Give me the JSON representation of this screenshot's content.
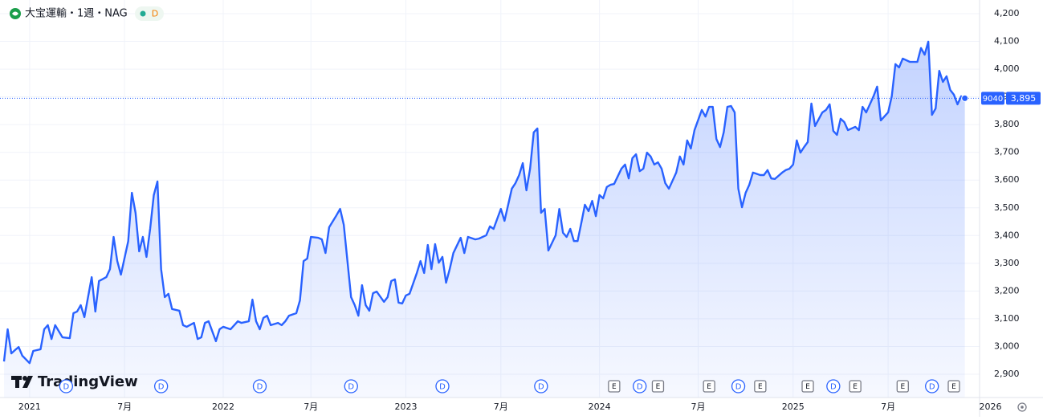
{
  "chart_data": {
    "type": "area",
    "title": "大宝運輸・1週・NAG",
    "badge": "D",
    "symbol_code": "9040",
    "last_label": "3,895",
    "watermark": "TradingView",
    "color": "#2962ff",
    "grid": true,
    "x": [
      0,
      1,
      2,
      3,
      4,
      5,
      7,
      8,
      10,
      11,
      12,
      13,
      14,
      16,
      18,
      19,
      20,
      21,
      22,
      24,
      25,
      26,
      28,
      29,
      30,
      31,
      32,
      34,
      35,
      36,
      37,
      38,
      39,
      40,
      41,
      42,
      43,
      44,
      45,
      46,
      48,
      49,
      50,
      52,
      53,
      54,
      55,
      56,
      58,
      59,
      60,
      62,
      64,
      65,
      67,
      68,
      69,
      70,
      71,
      72,
      73,
      75,
      76,
      77,
      78,
      80,
      81,
      82,
      83,
      84,
      86,
      87,
      88,
      89,
      91,
      92,
      93,
      95,
      96,
      97,
      98,
      99,
      100,
      101,
      102,
      104,
      105,
      106,
      107,
      108,
      109,
      110,
      111,
      113,
      114,
      115,
      116,
      117,
      118,
      119,
      120,
      121,
      122,
      123,
      125,
      126,
      127,
      129,
      130,
      132,
      133,
      134,
      136,
      137,
      139,
      140,
      141,
      142,
      143,
      144,
      145,
      146,
      147,
      148,
      149,
      151,
      152,
      153,
      154,
      155,
      156,
      157,
      158,
      159,
      160,
      161,
      162,
      163,
      164,
      165,
      166,
      167,
      169,
      170,
      171,
      172,
      173,
      174,
      175,
      176,
      177,
      178,
      179,
      180,
      181,
      182,
      184,
      185,
      186,
      187,
      188,
      189,
      191,
      192,
      193,
      194,
      195,
      196,
      197,
      198,
      199,
      200,
      201,
      202,
      203,
      204,
      205,
      207,
      208,
      209,
      210,
      211,
      213,
      214,
      215,
      216,
      217,
      218,
      219,
      220,
      221,
      222,
      224,
      225,
      226,
      227,
      228,
      229,
      230,
      231,
      233,
      234,
      235,
      236,
      237,
      238,
      239,
      240,
      242,
      243,
      244,
      245,
      246,
      248,
      249,
      250,
      251,
      252,
      253,
      254,
      255,
      256,
      257,
      258,
      259,
      260,
      261,
      262,
      263
    ],
    "values": [
      2946,
      3062,
      2975,
      2987,
      2998,
      2967,
      2940,
      2984,
      2990,
      3062,
      3077,
      3027,
      3077,
      3033,
      3030,
      3120,
      3126,
      3149,
      3106,
      3250,
      3126,
      3236,
      3250,
      3279,
      3395,
      3308,
      3259,
      3380,
      3554,
      3482,
      3343,
      3395,
      3323,
      3424,
      3546,
      3595,
      3279,
      3178,
      3190,
      3135,
      3129,
      3077,
      3071,
      3085,
      3027,
      3033,
      3085,
      3091,
      3019,
      3062,
      3071,
      3062,
      3091,
      3085,
      3091,
      3169,
      3091,
      3062,
      3103,
      3111,
      3077,
      3085,
      3077,
      3091,
      3111,
      3120,
      3166,
      3308,
      3317,
      3395,
      3392,
      3386,
      3337,
      3430,
      3473,
      3496,
      3439,
      3178,
      3149,
      3111,
      3221,
      3149,
      3129,
      3192,
      3198,
      3161,
      3178,
      3236,
      3242,
      3158,
      3155,
      3184,
      3190,
      3265,
      3308,
      3265,
      3366,
      3279,
      3369,
      3302,
      3323,
      3230,
      3279,
      3337,
      3392,
      3337,
      3395,
      3386,
      3389,
      3401,
      3433,
      3424,
      3496,
      3453,
      3569,
      3589,
      3618,
      3661,
      3563,
      3641,
      3772,
      3786,
      3482,
      3496,
      3346,
      3401,
      3496,
      3410,
      3395,
      3424,
      3380,
      3380,
      3444,
      3511,
      3488,
      3525,
      3470,
      3546,
      3534,
      3575,
      3583,
      3586,
      3641,
      3656,
      3606,
      3679,
      3693,
      3632,
      3641,
      3699,
      3685,
      3656,
      3664,
      3641,
      3589,
      3569,
      3627,
      3685,
      3656,
      3743,
      3714,
      3780,
      3853,
      3829,
      3864,
      3864,
      3748,
      3719,
      3772,
      3864,
      3867,
      3844,
      3569,
      3502,
      3554,
      3583,
      3627,
      3618,
      3618,
      3636,
      3606,
      3604,
      3627,
      3636,
      3641,
      3656,
      3743,
      3699,
      3719,
      3737,
      3876,
      3795,
      3844,
      3853,
      3873,
      3777,
      3763,
      3821,
      3809,
      3780,
      3792,
      3780,
      3864,
      3844,
      3873,
      3902,
      3937,
      3815,
      3844,
      3902,
      4018,
      4006,
      4038,
      4026,
      4026,
      4026,
      4076,
      4052,
      4099,
      3835,
      3858,
      3994,
      3954,
      3974,
      3925,
      3908,
      3873,
      3902,
      3895
    ],
    "xlim": [
      0,
      270
    ],
    "xticks": [
      {
        "value": 7,
        "label": "2021"
      },
      {
        "value": 33,
        "label": "7月"
      },
      {
        "value": 60,
        "label": "2022"
      },
      {
        "value": 84,
        "label": "7月"
      },
      {
        "value": 110,
        "label": "2023"
      },
      {
        "value": 136,
        "label": "7月"
      },
      {
        "value": 163,
        "label": "2024"
      },
      {
        "value": 190,
        "label": "7月"
      },
      {
        "value": 216,
        "label": "2025"
      },
      {
        "value": 242,
        "label": "7月"
      },
      {
        "value": 270,
        "label": "2026"
      }
    ],
    "ylim": [
      2900,
      4200
    ],
    "yticks": [
      {
        "value": 2900,
        "label": "2,900"
      },
      {
        "value": 3000,
        "label": "3,000"
      },
      {
        "value": 3100,
        "label": "3,100"
      },
      {
        "value": 3200,
        "label": "3,200"
      },
      {
        "value": 3300,
        "label": "3,300"
      },
      {
        "value": 3400,
        "label": "3,400"
      },
      {
        "value": 3500,
        "label": "3,500"
      },
      {
        "value": 3600,
        "label": "3,600"
      },
      {
        "value": 3700,
        "label": "3,700"
      },
      {
        "value": 3800,
        "label": "3,800"
      },
      {
        "value": 3900,
        "label": "3,900"
      },
      {
        "value": 4000,
        "label": "4,000"
      },
      {
        "value": 4100,
        "label": "4,100"
      },
      {
        "value": 4200,
        "label": "4,200"
      }
    ],
    "events": [
      {
        "x": 17,
        "label": "D"
      },
      {
        "x": 43,
        "label": "D"
      },
      {
        "x": 70,
        "label": "D"
      },
      {
        "x": 95,
        "label": "D"
      },
      {
        "x": 120,
        "label": "D"
      },
      {
        "x": 147,
        "label": "D"
      },
      {
        "x": 167,
        "label": "E"
      },
      {
        "x": 174,
        "label": "D"
      },
      {
        "x": 179,
        "label": "E"
      },
      {
        "x": 193,
        "label": "E"
      },
      {
        "x": 201,
        "label": "D"
      },
      {
        "x": 207,
        "label": "E"
      },
      {
        "x": 220,
        "label": "E"
      },
      {
        "x": 227,
        "label": "D"
      },
      {
        "x": 233,
        "label": "E"
      },
      {
        "x": 246,
        "label": "E"
      },
      {
        "x": 254,
        "label": "D"
      },
      {
        "x": 260,
        "label": "E"
      }
    ]
  }
}
